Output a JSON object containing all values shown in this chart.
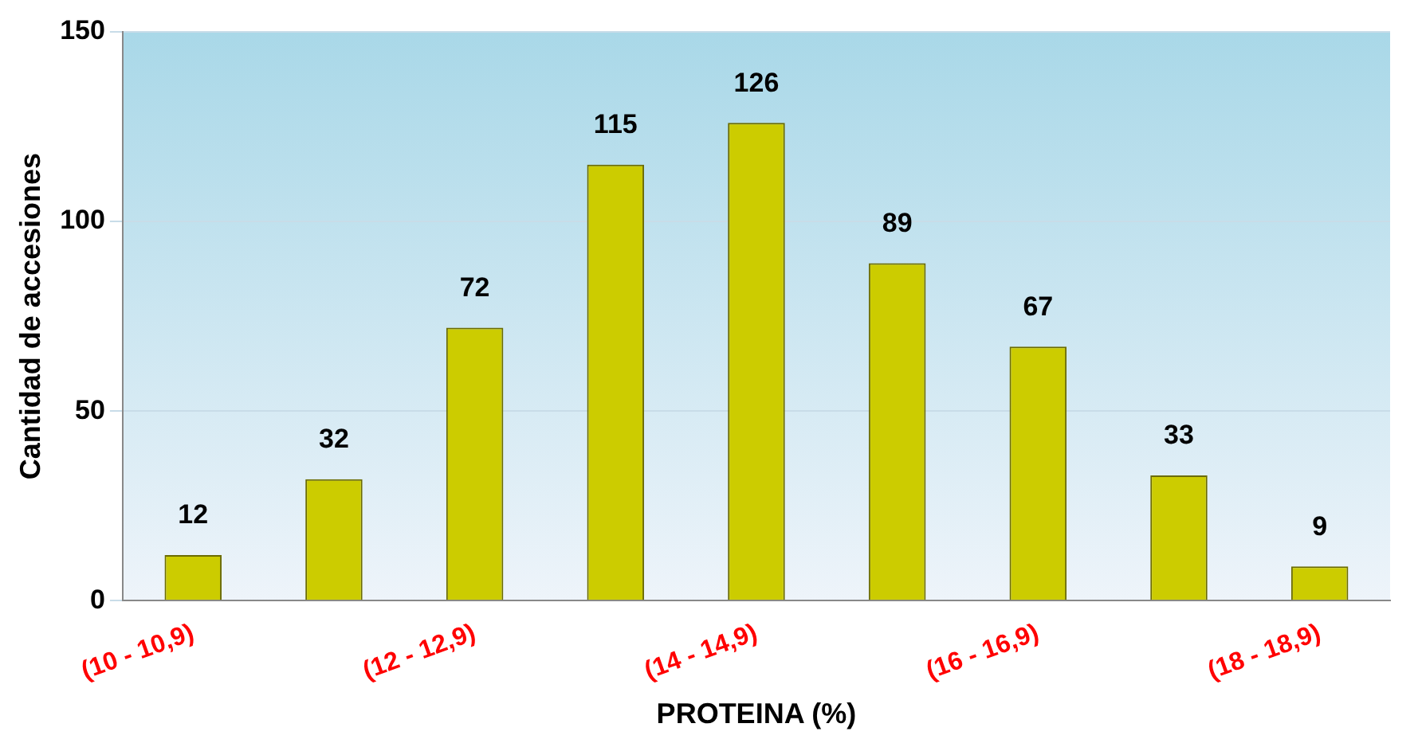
{
  "chart_data": {
    "type": "bar",
    "categories": [
      "(10 - 10,9)",
      null,
      "(12 - 12,9)",
      null,
      "(14 - 14,9)",
      null,
      "(16 - 16,9)",
      null,
      "(18 - 18,9)"
    ],
    "values": [
      12,
      32,
      72,
      115,
      126,
      89,
      67,
      33,
      9
    ],
    "color": "#cccc00",
    "xlabel": "PROTEINA (%)",
    "ylabel": "Cantidad de accesiones",
    "ylim": [
      0,
      150
    ],
    "yticks": [
      0,
      50,
      100,
      150
    ],
    "grid": "y",
    "legend": false,
    "data_labels": true
  }
}
